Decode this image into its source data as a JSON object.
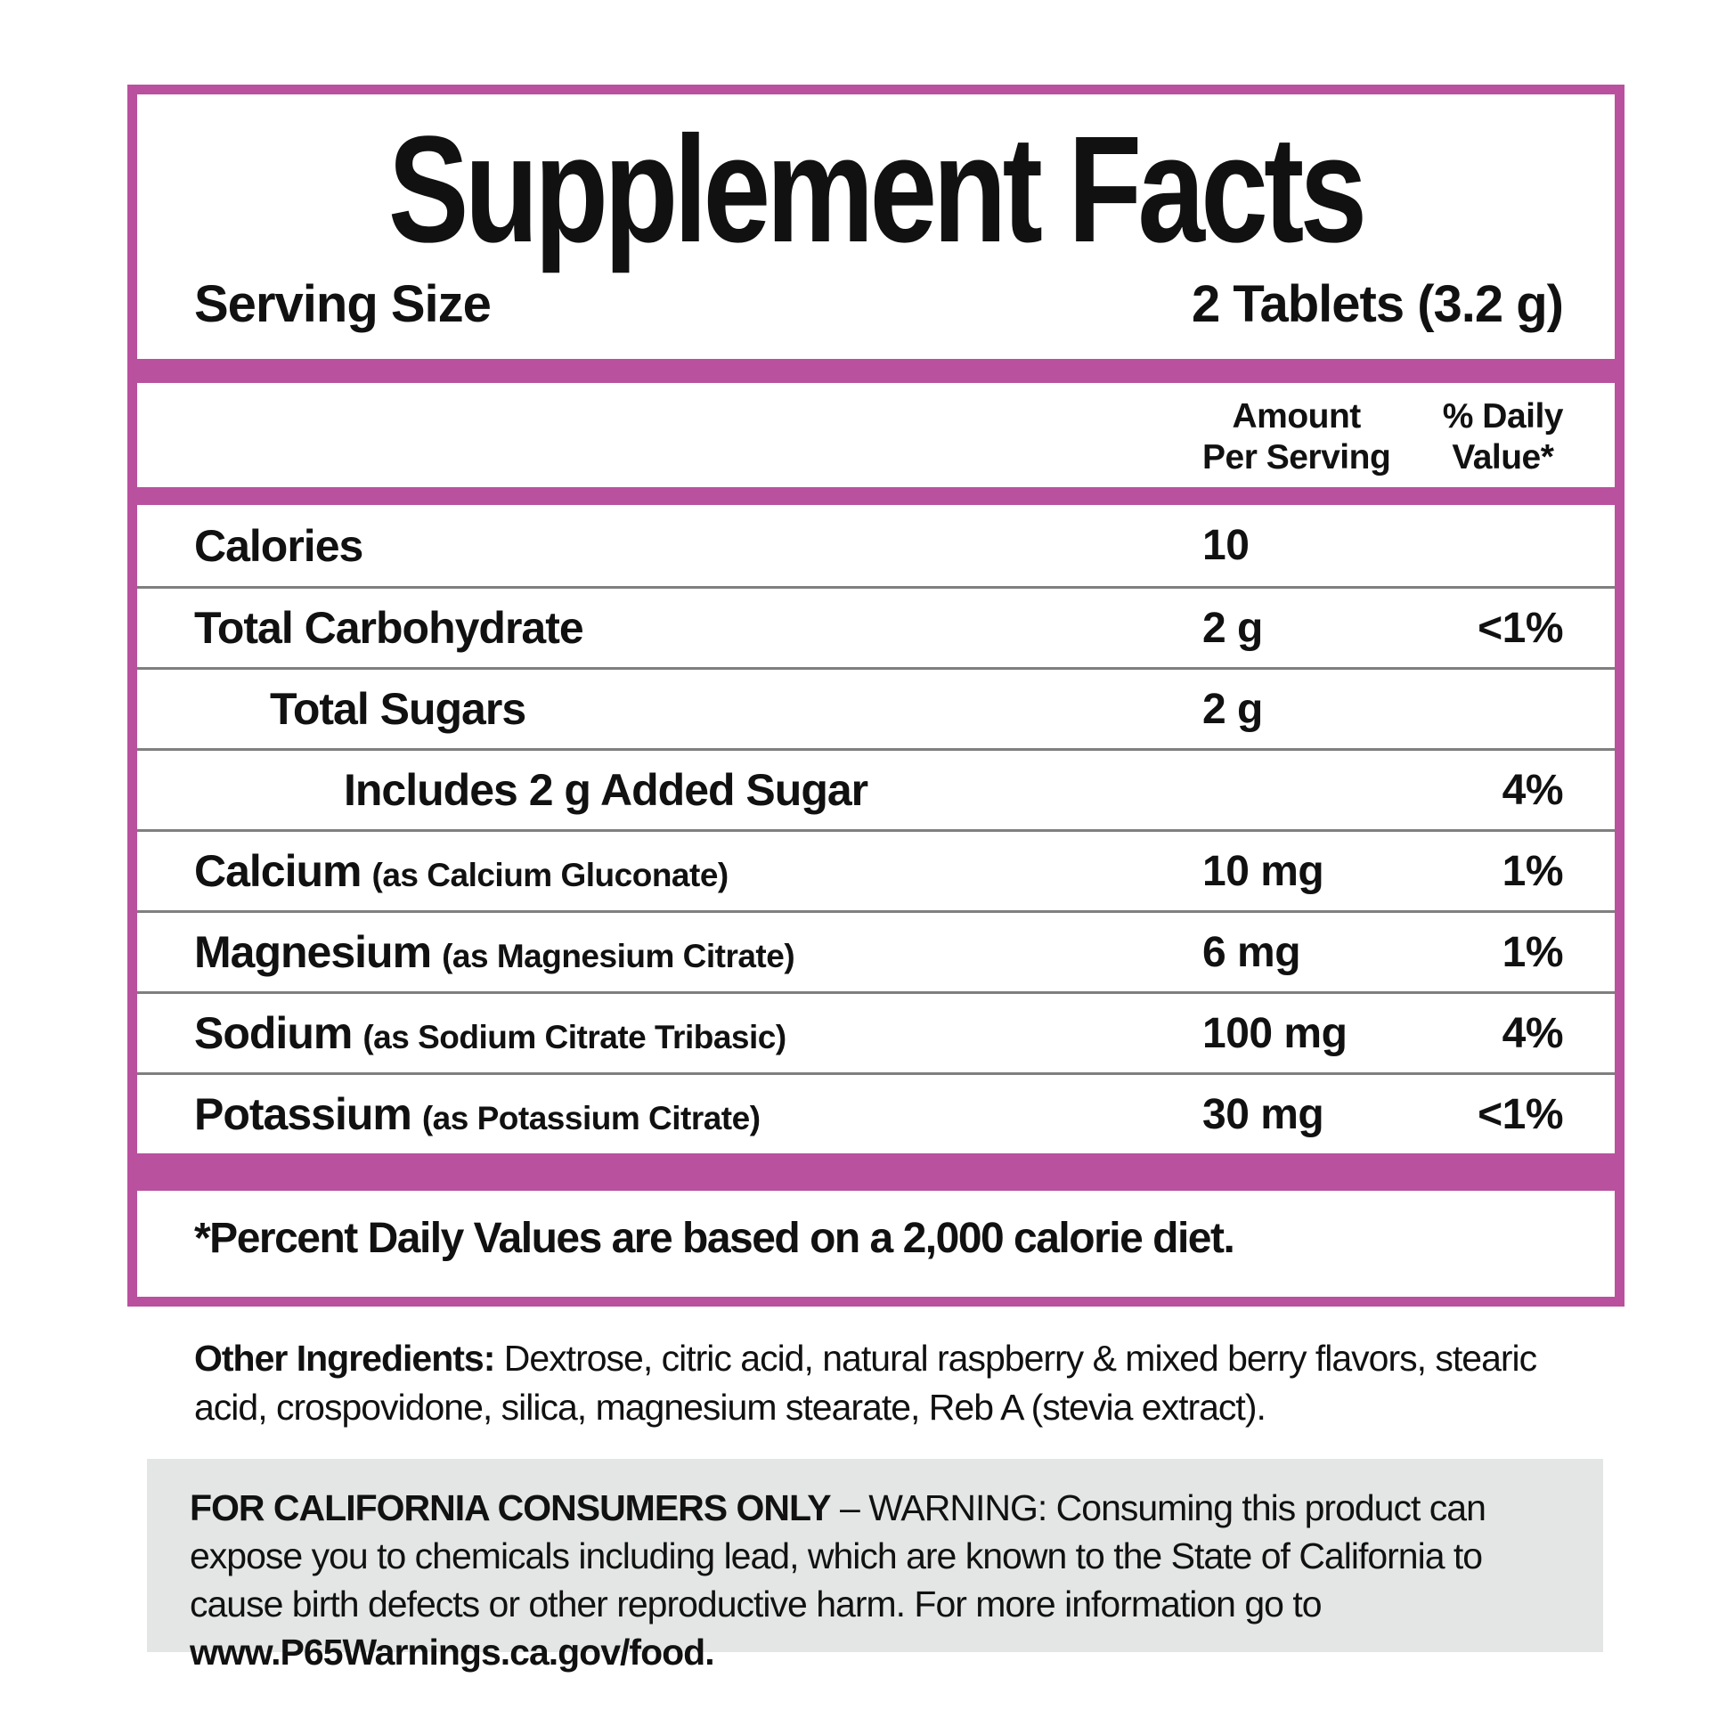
{
  "accent_color": "#b9519f",
  "warning_bg_color": "#e4e6e6",
  "divider_color": "#7f7f7f",
  "panel": {
    "title": "Supplement Facts",
    "serving_size_label": "Serving Size",
    "serving_size_value": "2 Tablets (3.2 g)",
    "columns": {
      "amount": [
        "Amount",
        "Per Serving"
      ],
      "daily_value": [
        "% Daily",
        "Value*"
      ]
    },
    "footnote": "*Percent Daily Values are based on a 2,000 calorie diet."
  },
  "rows": [
    {
      "name": "Calories",
      "sub": "",
      "amount": "10",
      "dv": ""
    },
    {
      "name": "Total Carbohydrate",
      "sub": "",
      "amount": "2 g",
      "dv": "<1%"
    },
    {
      "name": "Total Sugars",
      "sub": "",
      "amount": "2 g",
      "dv": ""
    },
    {
      "name": "Includes 2 g Added Sugar",
      "sub": "",
      "amount": "",
      "dv": "4%"
    },
    {
      "name": "Calcium",
      "sub": "(as Calcium Gluconate)",
      "amount": "10 mg",
      "dv": "1%"
    },
    {
      "name": "Magnesium",
      "sub": "(as Magnesium Citrate)",
      "amount": "6 mg",
      "dv": "1%"
    },
    {
      "name": "Sodium",
      "sub": "(as Sodium Citrate Tribasic)",
      "amount": "100 mg",
      "dv": "4%"
    },
    {
      "name": "Potassium",
      "sub": "(as Potassium Citrate)",
      "amount": "30 mg",
      "dv": "<1%"
    }
  ],
  "other_ingredients": {
    "label": "Other Ingredients:",
    "text": " Dextrose, citric acid, natural raspberry & mixed berry flavors, stearic acid, crospovidone, silica, magnesium stearate, Reb A (stevia extract)."
  },
  "warning": {
    "heading": "FOR CALIFORNIA CONSUMERS ONLY",
    "body": " – WARNING: Consuming this product can expose you to chemicals including lead, which are known to the State of California to cause birth defects or other reproductive harm. For more information go to ",
    "link": "www.P65Warnings.ca.gov/food."
  }
}
